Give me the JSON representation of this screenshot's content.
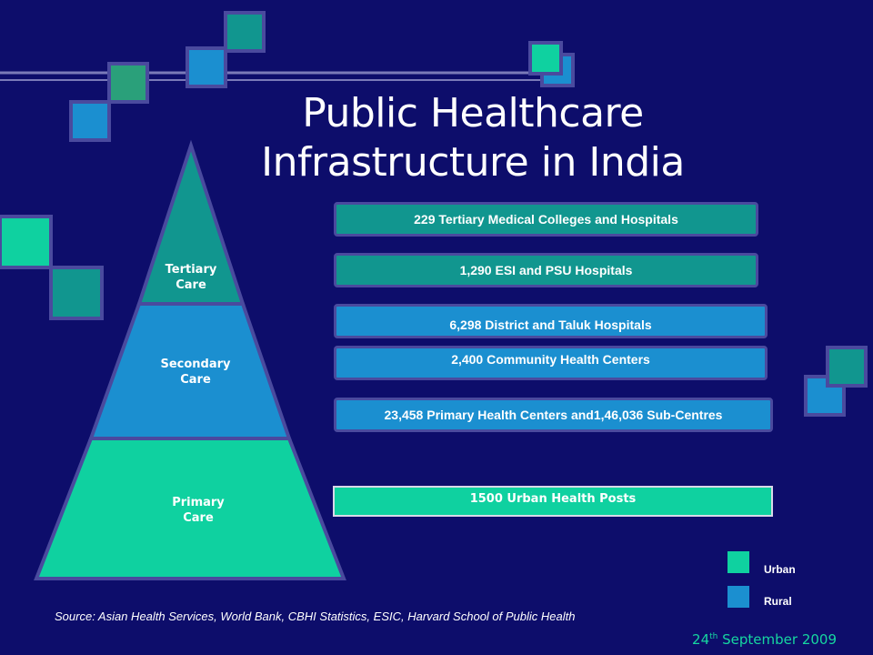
{
  "title": {
    "line1": "Public Healthcare",
    "line2": "Infrastructure in India"
  },
  "pyramid": {
    "tiers": [
      {
        "line1": "Tertiary",
        "line2": "Care",
        "color": "#11968f"
      },
      {
        "line1": "Secondary",
        "line2": "Care",
        "color": "#1b8fd0"
      },
      {
        "line1": "Primary",
        "line2": "Care",
        "color": "#0fd1a0"
      }
    ]
  },
  "bars": [
    {
      "label": "229 Tertiary Medical Colleges and Hospitals",
      "kind": "teal"
    },
    {
      "label": "1,290 ESI and PSU Hospitals",
      "kind": "teal"
    },
    {
      "label": "6,298 District and Taluk Hospitals",
      "kind": "rural"
    },
    {
      "label": "2,400 Community Health Centers",
      "kind": "rural"
    },
    {
      "label": "23,458 Primary Health Centers and1,46,036 Sub-Centres",
      "kind": "rural"
    },
    {
      "label": "1500 Urban Health Posts",
      "kind": "urban"
    }
  ],
  "legend": {
    "urban": {
      "label": "Urban",
      "color": "#0fd1a0"
    },
    "rural": {
      "label": "Rural",
      "color": "#1b8fd0"
    }
  },
  "source": "Source: Asian Health Services, World Bank, CBHI Statistics, ESIC, Harvard School of Public Health",
  "date": {
    "day": "24",
    "suffix": "th",
    "rest": " September 2009"
  }
}
